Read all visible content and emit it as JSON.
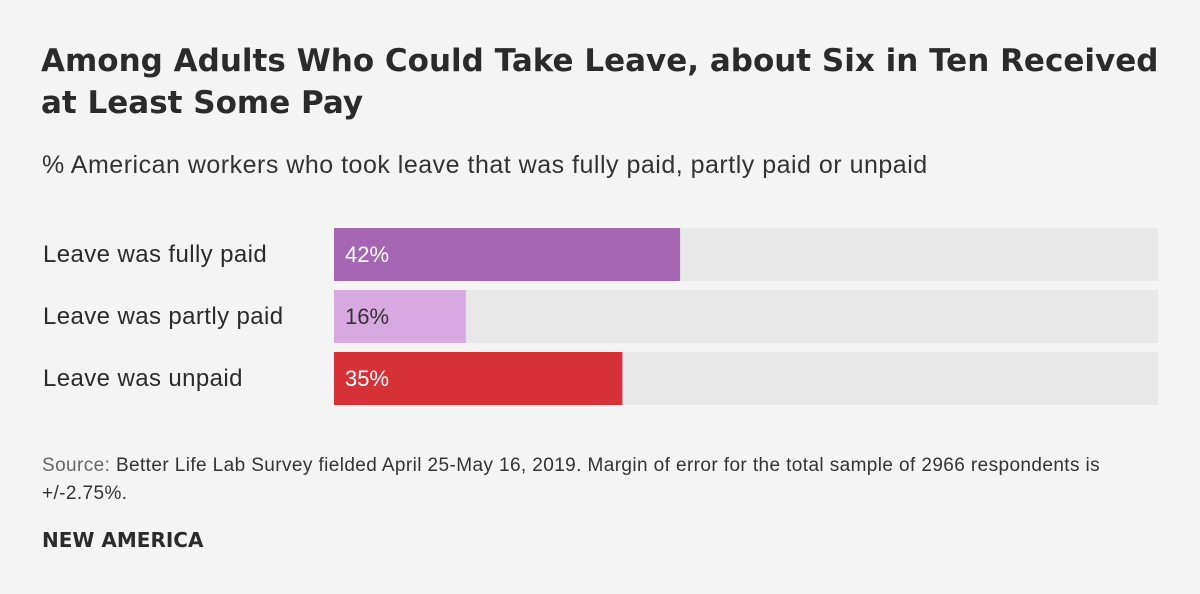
{
  "chart_data": {
    "type": "bar",
    "orientation": "horizontal",
    "title": "Among Adults Who Could Take Leave, about Six in Ten Received at Least Some Pay",
    "subtitle": "% American workers who took leave that was fully paid, partly paid or unpaid",
    "categories": [
      "Leave was fully paid",
      "Leave was partly paid",
      "Leave was unpaid"
    ],
    "values": [
      42,
      16,
      35
    ],
    "value_labels": [
      "42%",
      "16%",
      "35%"
    ],
    "xlim": [
      0,
      100
    ],
    "unit": "%",
    "colors": [
      "#a665b3",
      "#d8a8e0",
      "#d63137"
    ],
    "label_colors": [
      "#ffffff",
      "#333333",
      "#ffffff"
    ],
    "track_color": "#e8e8e8"
  },
  "footer": {
    "source_label": "Source:",
    "source_text": "Better Life Lab Survey fielded April 25-May 16, 2019. Margin of error for the total sample of 2966 respondents is +/-2.75%.",
    "brand": "NEW AMERICA"
  }
}
